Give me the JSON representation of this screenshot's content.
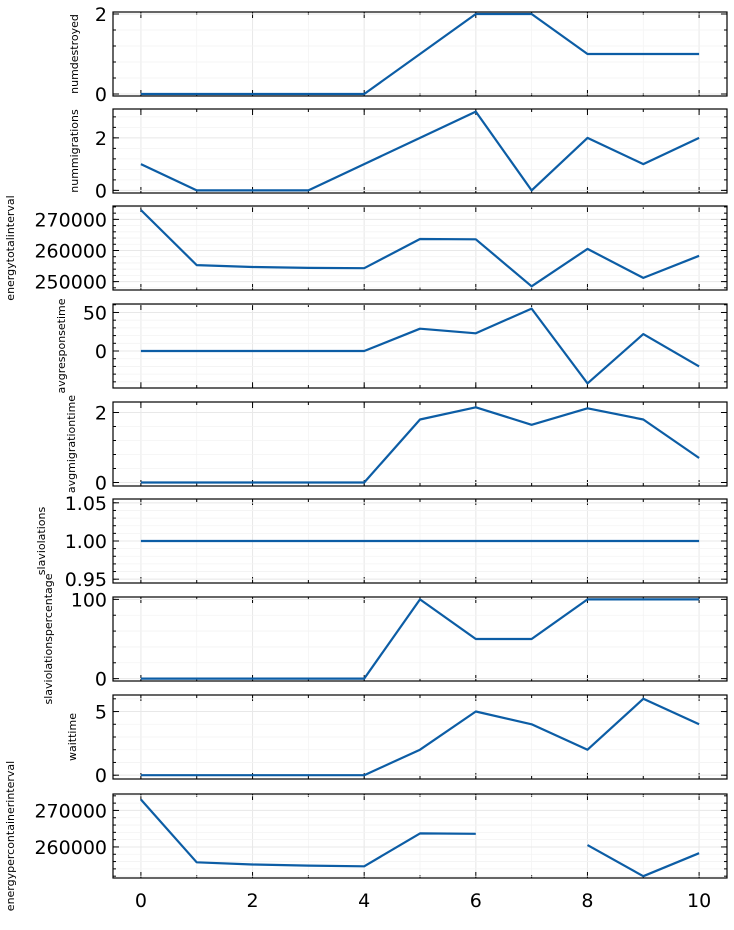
{
  "chart_data": [
    {
      "type": "line",
      "ylabel": "numdestroyed",
      "x": [
        0,
        1,
        2,
        3,
        4,
        5,
        6,
        7,
        8,
        9,
        10
      ],
      "values": [
        0,
        0,
        0,
        0,
        0,
        1,
        2,
        2,
        1,
        1,
        1
      ],
      "ylim": [
        -0.05,
        2.05
      ],
      "yticks": [
        0,
        2
      ],
      "yticklabels": [
        "0",
        "2"
      ],
      "grid": true,
      "color": "#0C5DA5"
    },
    {
      "type": "line",
      "ylabel": "nummigrations",
      "x": [
        0,
        1,
        2,
        3,
        4,
        5,
        6,
        7,
        8,
        9,
        10
      ],
      "values": [
        1,
        0,
        0,
        0,
        1,
        2,
        3,
        0,
        2,
        1,
        2
      ],
      "ylim": [
        -0.1,
        3.1
      ],
      "yticks": [
        0,
        2
      ],
      "yticklabels": [
        "0",
        "2"
      ],
      "grid": true,
      "color": "#0C5DA5"
    },
    {
      "type": "line",
      "ylabel": "energytotalinterval",
      "x": [
        0,
        1,
        2,
        3,
        4,
        5,
        6,
        7,
        8,
        9,
        10
      ],
      "values": [
        273000,
        255300,
        254700,
        254400,
        254300,
        263700,
        263600,
        248500,
        260500,
        251200,
        258300
      ],
      "ylim": [
        247300,
        274300
      ],
      "yticks": [
        250000,
        260000,
        270000
      ],
      "yticklabels": [
        "250000",
        "260000",
        "270000"
      ],
      "grid": true,
      "color": "#0C5DA5"
    },
    {
      "type": "line",
      "ylabel": "avgresponsetime",
      "x": [
        0,
        1,
        2,
        3,
        4,
        5,
        6,
        7,
        8,
        9,
        10
      ],
      "values": [
        0,
        0,
        0,
        0,
        0,
        29,
        23,
        55,
        -42,
        22,
        -20
      ],
      "ylim": [
        -48,
        61
      ],
      "yticks": [
        0,
        50
      ],
      "yticklabels": [
        "0",
        "50"
      ],
      "grid": true,
      "color": "#0C5DA5"
    },
    {
      "type": "line",
      "ylabel": "avgmigrationtime",
      "x": [
        0,
        1,
        2,
        3,
        4,
        5,
        6,
        7,
        8,
        9,
        10
      ],
      "values": [
        0,
        0,
        0,
        0,
        0,
        1.8,
        2.15,
        1.65,
        2.12,
        1.8,
        0.7
      ],
      "ylim": [
        -0.1,
        2.3
      ],
      "yticks": [
        0,
        2
      ],
      "yticklabels": [
        "0",
        "2"
      ],
      "grid": true,
      "color": "#0C5DA5"
    },
    {
      "type": "line",
      "ylabel": "slaviolations",
      "x": [
        0,
        1,
        2,
        3,
        4,
        5,
        6,
        7,
        8,
        9,
        10
      ],
      "values": [
        1,
        1,
        1,
        1,
        1,
        1,
        1,
        1,
        1,
        1,
        1
      ],
      "ylim": [
        0.945,
        1.055
      ],
      "yticks": [
        0.95,
        1.0,
        1.05
      ],
      "yticklabels": [
        "0.95",
        "1.00",
        "1.05"
      ],
      "grid": true,
      "color": "#0C5DA5"
    },
    {
      "type": "line",
      "ylabel": "slaviolationspercentage",
      "x": [
        0,
        1,
        2,
        3,
        4,
        5,
        6,
        7,
        8,
        9,
        10
      ],
      "values": [
        0,
        0,
        0,
        0,
        0,
        100,
        50,
        50,
        100,
        100,
        100
      ],
      "ylim": [
        -3,
        103
      ],
      "yticks": [
        0,
        100
      ],
      "yticklabels": [
        "0",
        "100"
      ],
      "grid": true,
      "color": "#0C5DA5"
    },
    {
      "type": "line",
      "ylabel": "waittime",
      "x": [
        0,
        1,
        2,
        3,
        4,
        5,
        6,
        7,
        8,
        9,
        10
      ],
      "values": [
        0,
        0,
        0,
        0,
        0,
        2,
        5,
        4,
        2,
        6,
        4
      ],
      "ylim": [
        -0.3,
        6.3
      ],
      "yticks": [
        0,
        5
      ],
      "yticklabels": [
        "0",
        "5"
      ],
      "grid": true,
      "color": "#0C5DA5"
    },
    {
      "type": "line",
      "ylabel": "energypercontainerinterval",
      "x": [
        0,
        1,
        2,
        3,
        4,
        5,
        6,
        7,
        8,
        9,
        10
      ],
      "values": [
        273000,
        255800,
        255200,
        254900,
        254700,
        263700,
        263600,
        null,
        260500,
        252000,
        258300
      ],
      "ylim": [
        251500,
        274500
      ],
      "yticks": [
        260000,
        270000
      ],
      "yticklabels": [
        "260000",
        "270000"
      ],
      "grid": true,
      "color": "#0C5DA5"
    }
  ],
  "xaxis": {
    "ticks": [
      0,
      2,
      4,
      6,
      8,
      10
    ],
    "ticklabels": [
      "0",
      "2",
      "4",
      "6",
      "8",
      "10"
    ],
    "xlim": [
      -0.5,
      10.5
    ]
  }
}
